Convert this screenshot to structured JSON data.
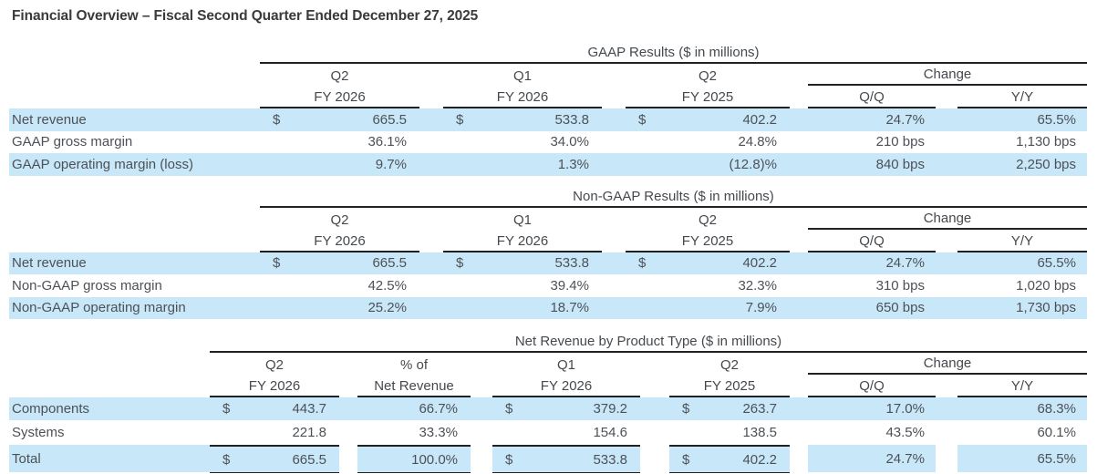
{
  "title": "Financial Overview – Fiscal Second Quarter Ended December 27, 2025",
  "colors": {
    "highlight": "#c8e8fa",
    "rule": "#212121",
    "text": "#4d5156"
  },
  "gaap": {
    "title": "GAAP Results ($ in millions)",
    "h": {
      "c1a": "Q2",
      "c1b": "FY 2026",
      "c2a": "Q1",
      "c2b": "FY 2026",
      "c3a": "Q2",
      "c3b": "FY 2025",
      "change": "Change",
      "qq": "Q/Q",
      "yy": "Y/Y"
    },
    "rows": [
      {
        "label": "Net revenue",
        "d1": "$",
        "v1": "665.5",
        "d2": "$",
        "v2": "533.8",
        "d3": "$",
        "v3": "402.2",
        "qq": "24.7%",
        "yy": "65.5%"
      },
      {
        "label": "GAAP gross margin",
        "d1": "",
        "v1": "36.1%",
        "d2": "",
        "v2": "34.0%",
        "d3": "",
        "v3": "24.8%",
        "qq": "210 bps",
        "yy": "1,130 bps"
      },
      {
        "label": "GAAP operating margin (loss)",
        "d1": "",
        "v1": "9.7%",
        "d2": "",
        "v2": "1.3%",
        "d3": "",
        "v3": "(12.8)%",
        "qq": "840 bps",
        "yy": "2,250 bps"
      }
    ]
  },
  "nongaap": {
    "title": "Non-GAAP Results ($ in millions)",
    "h": {
      "c1a": "Q2",
      "c1b": "FY 2026",
      "c2a": "Q1",
      "c2b": "FY 2026",
      "c3a": "Q2",
      "c3b": "FY 2025",
      "change": "Change",
      "qq": "Q/Q",
      "yy": "Y/Y"
    },
    "rows": [
      {
        "label": "Net revenue",
        "d1": "$",
        "v1": "665.5",
        "d2": "$",
        "v2": "533.8",
        "d3": "$",
        "v3": "402.2",
        "qq": "24.7%",
        "yy": "65.5%"
      },
      {
        "label": "Non-GAAP gross margin",
        "d1": "",
        "v1": "42.5%",
        "d2": "",
        "v2": "39.4%",
        "d3": "",
        "v3": "32.3%",
        "qq": "310 bps",
        "yy": "1,020 bps"
      },
      {
        "label": "Non-GAAP operating margin",
        "d1": "",
        "v1": "25.2%",
        "d2": "",
        "v2": "18.7%",
        "d3": "",
        "v3": "7.9%",
        "qq": "650 bps",
        "yy": "1,730 bps"
      }
    ]
  },
  "product": {
    "title": "Net Revenue by Product Type ($ in millions)",
    "h": {
      "c1a": "Q2",
      "c1b": "FY 2026",
      "pa": "% of",
      "pb": "Net Revenue",
      "c2a": "Q1",
      "c2b": "FY 2026",
      "c3a": "Q2",
      "c3b": "FY 2025",
      "change": "Change",
      "qq": "Q/Q",
      "yy": "Y/Y"
    },
    "rows": [
      {
        "label": "Components",
        "d1": "$",
        "v1": "443.7",
        "pct": "66.7%",
        "d2": "$",
        "v2": "379.2",
        "d3": "$",
        "v3": "263.7",
        "qq": "17.0%",
        "yy": "68.3%"
      },
      {
        "label": "Systems",
        "d1": "",
        "v1": "221.8",
        "pct": "33.3%",
        "d2": "",
        "v2": "154.6",
        "d3": "",
        "v3": "138.5",
        "qq": "43.5%",
        "yy": "60.1%"
      },
      {
        "label": "Total",
        "d1": "$",
        "v1": "665.5",
        "pct": "100.0%",
        "d2": "$",
        "v2": "533.8",
        "d3": "$",
        "v3": "402.2",
        "qq": "24.7%",
        "yy": "65.5%"
      }
    ]
  }
}
